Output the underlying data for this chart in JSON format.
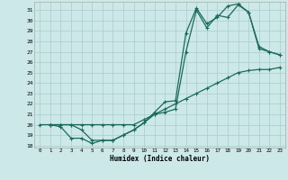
{
  "xlabel": "Humidex (Indice chaleur)",
  "bg_color": "#cce8e8",
  "grid_color": "#aacccc",
  "line_color": "#1a6b5a",
  "xlim": [
    -0.5,
    23.5
  ],
  "ylim": [
    17.8,
    31.8
  ],
  "yticks": [
    18,
    19,
    20,
    21,
    22,
    23,
    24,
    25,
    26,
    27,
    28,
    29,
    30,
    31
  ],
  "xticks": [
    0,
    1,
    2,
    3,
    4,
    5,
    6,
    7,
    8,
    9,
    10,
    11,
    12,
    13,
    14,
    15,
    16,
    17,
    18,
    19,
    20,
    21,
    22,
    23
  ],
  "line1_x": [
    0,
    1,
    2,
    3,
    4,
    5,
    6,
    7,
    8,
    9,
    10,
    11,
    12,
    13,
    14,
    15,
    16,
    17,
    18,
    19,
    20,
    21,
    22,
    23
  ],
  "line1_y": [
    20,
    20,
    20,
    20,
    20,
    20,
    20,
    20,
    20,
    20,
    20.5,
    21,
    21.5,
    22,
    22.5,
    23,
    23.5,
    24,
    24.5,
    25,
    25.2,
    25.3,
    25.3,
    25.5
  ],
  "line2_x": [
    1,
    2,
    3,
    4,
    5,
    6,
    7,
    8,
    9,
    10,
    11,
    12,
    13,
    14,
    15,
    16,
    17,
    18,
    19,
    20,
    21,
    22,
    23
  ],
  "line2_y": [
    20,
    19.8,
    18.7,
    18.7,
    18.2,
    18.5,
    18.5,
    19.0,
    19.5,
    20.2,
    21.2,
    22.2,
    22.3,
    28.8,
    31.2,
    29.7,
    30.3,
    31.4,
    31.6,
    30.8,
    27.3,
    27.0,
    26.7
  ],
  "line3_x": [
    1,
    2,
    3,
    4,
    5,
    6,
    7,
    8,
    9,
    10,
    11,
    12,
    13,
    14,
    15,
    16,
    17,
    18,
    19,
    20,
    21,
    22,
    23
  ],
  "line3_y": [
    20,
    20,
    20,
    19.5,
    18.5,
    18.5,
    18.5,
    19.0,
    19.5,
    20.2,
    21.0,
    21.2,
    21.5,
    27.0,
    31.0,
    29.3,
    30.5,
    30.3,
    31.5,
    30.8,
    27.5,
    27.0,
    26.7
  ]
}
